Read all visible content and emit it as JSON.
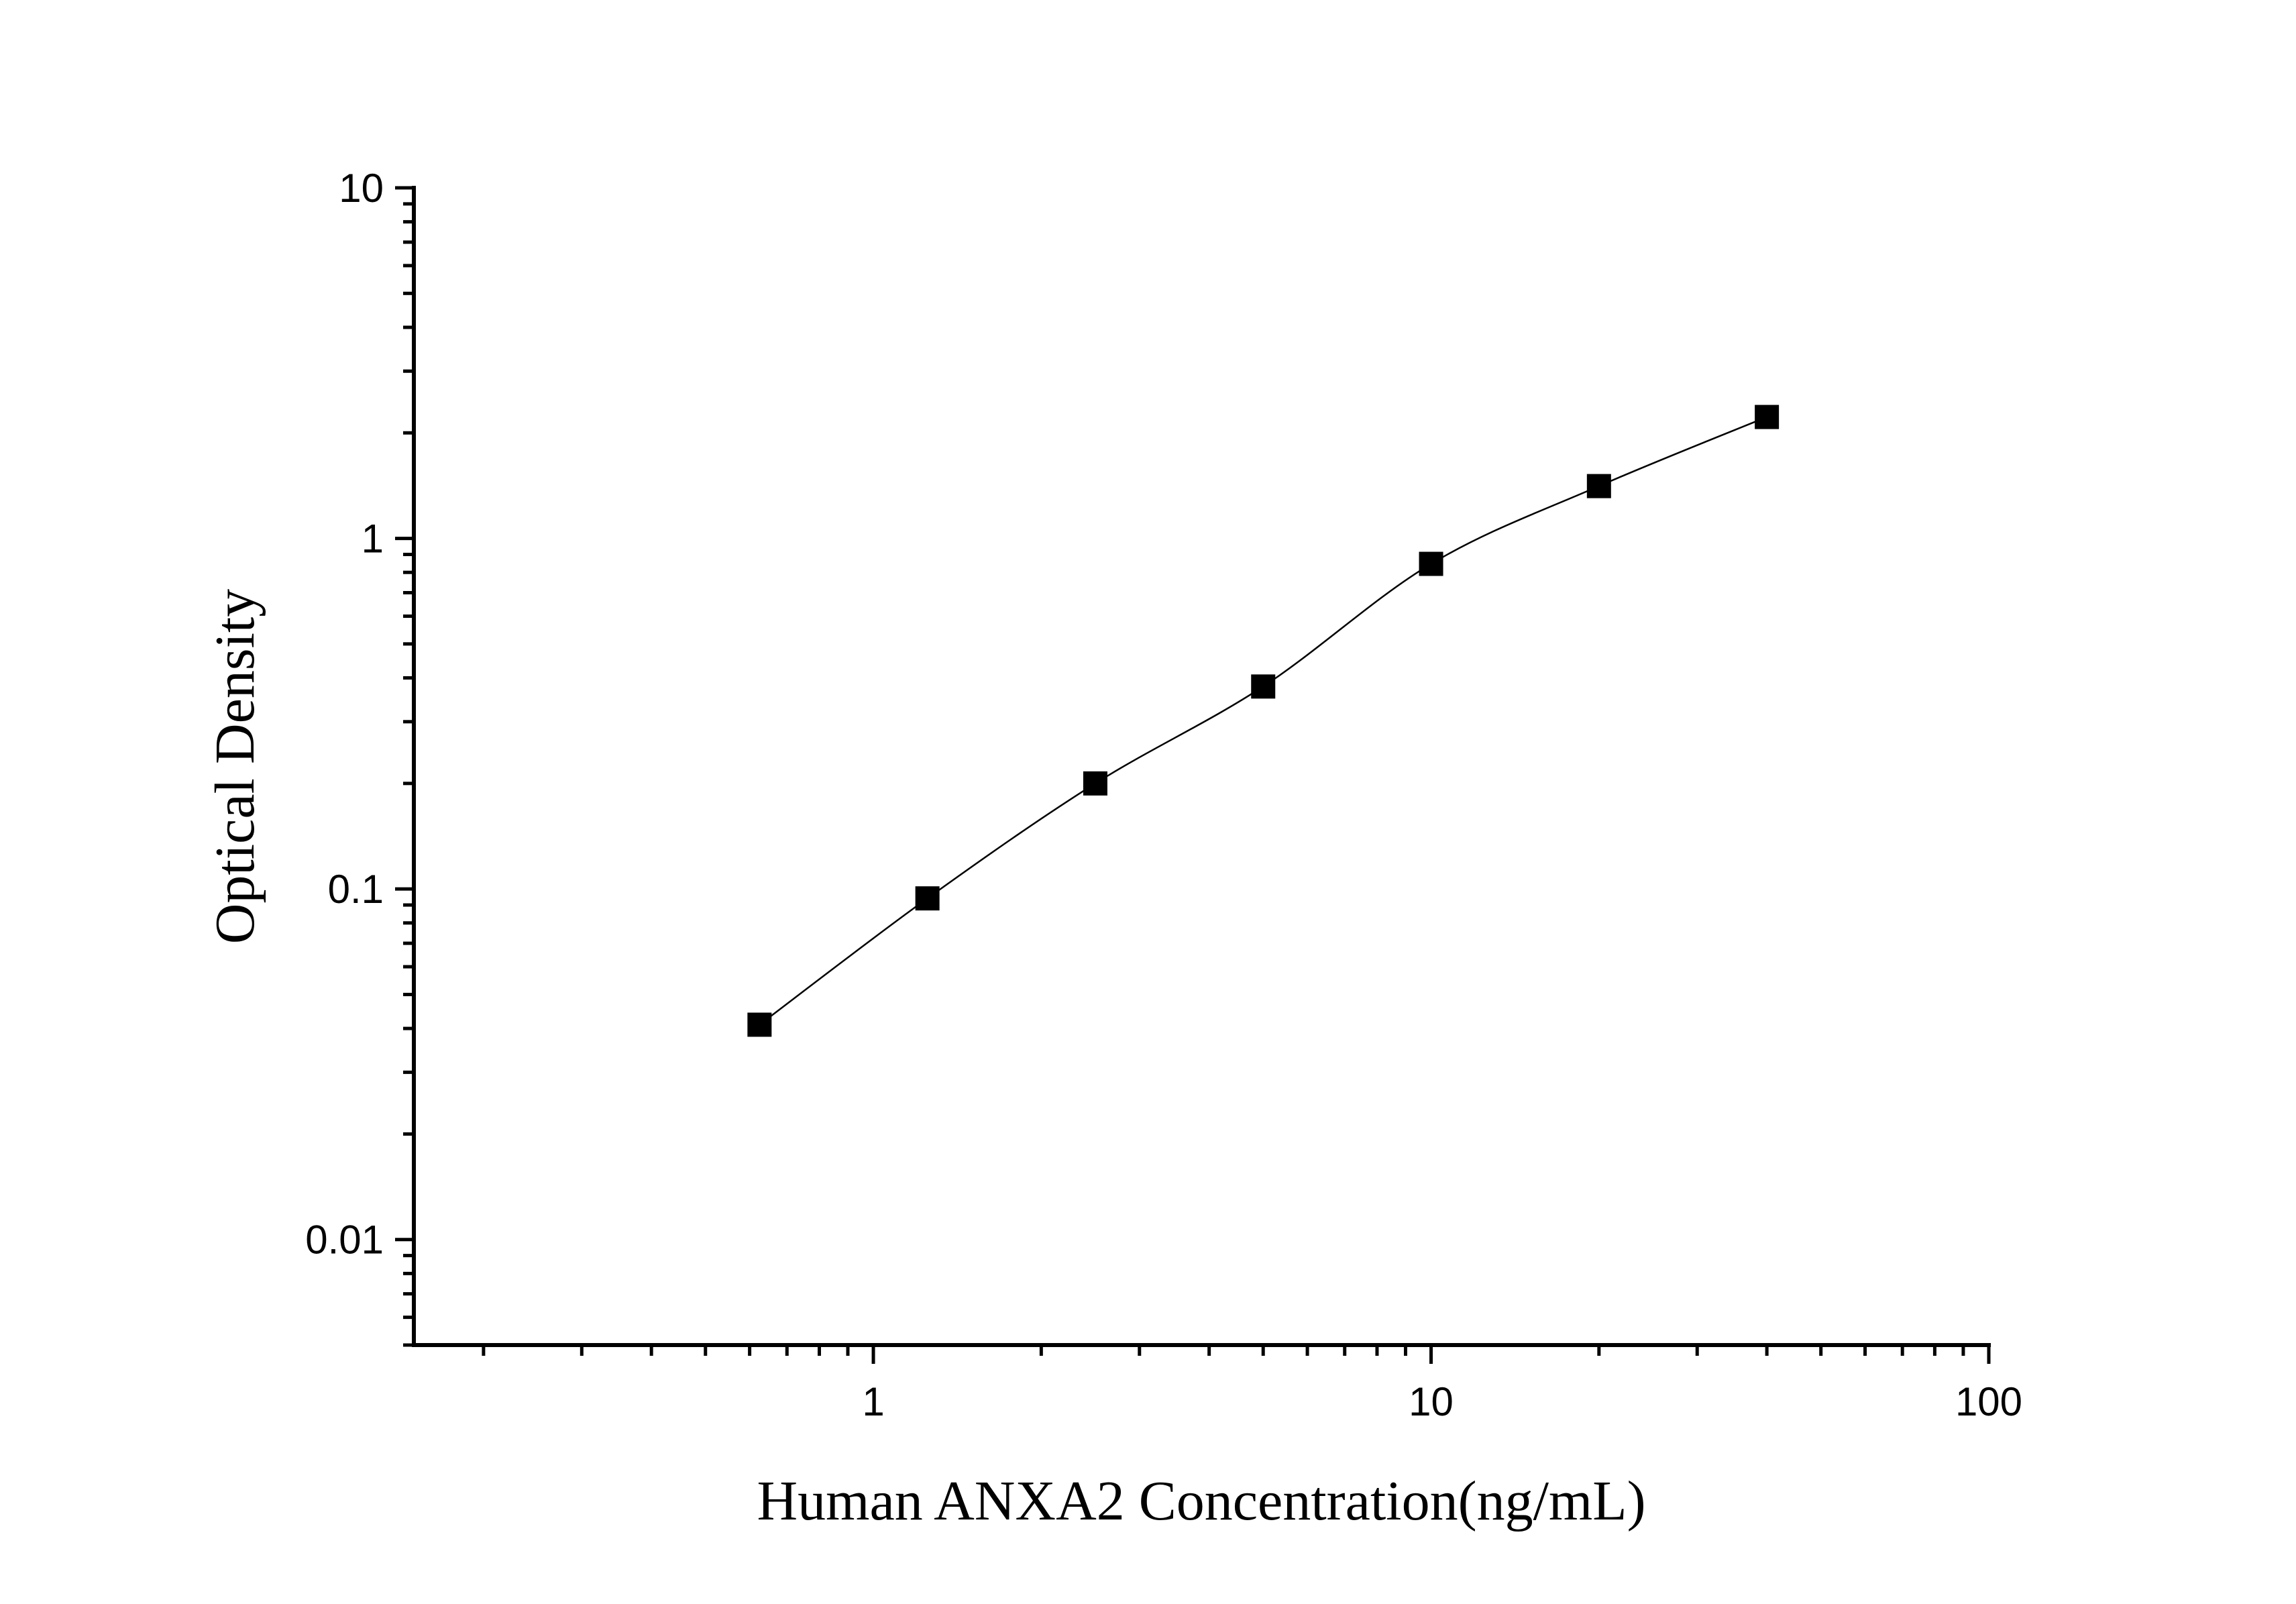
{
  "chart_data": {
    "type": "scatter",
    "xlabel": "Human ANXA2 Concentration(ng/mL)",
    "ylabel": "Optical Density",
    "x_scale": "log",
    "y_scale": "log",
    "xlim": [
      0.15,
      100
    ],
    "ylim": [
      0.005,
      10
    ],
    "x_ticks": [
      {
        "value": 1,
        "label": "1"
      },
      {
        "value": 10,
        "label": "10"
      },
      {
        "value": 100,
        "label": "100"
      }
    ],
    "y_ticks": [
      {
        "value": 0.01,
        "label": "0.01"
      },
      {
        "value": 0.1,
        "label": "0.1"
      },
      {
        "value": 1,
        "label": "1"
      },
      {
        "value": 10,
        "label": "10"
      }
    ],
    "grid": false,
    "series": [
      {
        "x": [
          0.625,
          1.25,
          2.5,
          5,
          10,
          20,
          40
        ],
        "y": [
          0.041,
          0.094,
          0.2,
          0.378,
          0.846,
          1.41,
          2.22
        ],
        "marker": "square",
        "color": "#000000",
        "fit_line": true
      }
    ]
  }
}
